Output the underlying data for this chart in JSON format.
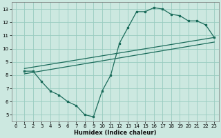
{
  "xlabel": "Humidex (Indice chaleur)",
  "bg_color": "#cce8e0",
  "grid_color": "#99ccc0",
  "line_color": "#1a6b5a",
  "xlim": [
    -0.5,
    23.5
  ],
  "ylim": [
    4.5,
    13.5
  ],
  "xticks": [
    0,
    1,
    2,
    3,
    4,
    5,
    6,
    7,
    8,
    9,
    10,
    11,
    12,
    13,
    14,
    15,
    16,
    17,
    18,
    19,
    20,
    21,
    22,
    23
  ],
  "yticks": [
    5,
    6,
    7,
    8,
    9,
    10,
    11,
    12,
    13
  ],
  "curve_x": [
    1,
    2,
    3,
    4,
    5,
    6,
    7,
    8,
    9,
    10,
    11,
    12,
    13,
    14,
    15,
    16,
    17,
    18,
    19,
    20,
    21,
    22,
    23
  ],
  "curve_y": [
    8.3,
    8.3,
    7.5,
    6.8,
    6.5,
    6.0,
    5.7,
    5.0,
    4.85,
    6.8,
    8.0,
    10.4,
    11.6,
    12.8,
    12.8,
    13.1,
    13.0,
    12.6,
    12.5,
    12.1,
    12.1,
    11.8,
    10.85
  ],
  "line2_x": [
    1,
    23
  ],
  "line2_y": [
    8.3,
    10.85
  ],
  "line3_x": [
    1,
    23
  ],
  "line3_y": [
    8.3,
    10.85
  ],
  "xlabel_fontsize": 6.0,
  "tick_fontsize": 5.0
}
